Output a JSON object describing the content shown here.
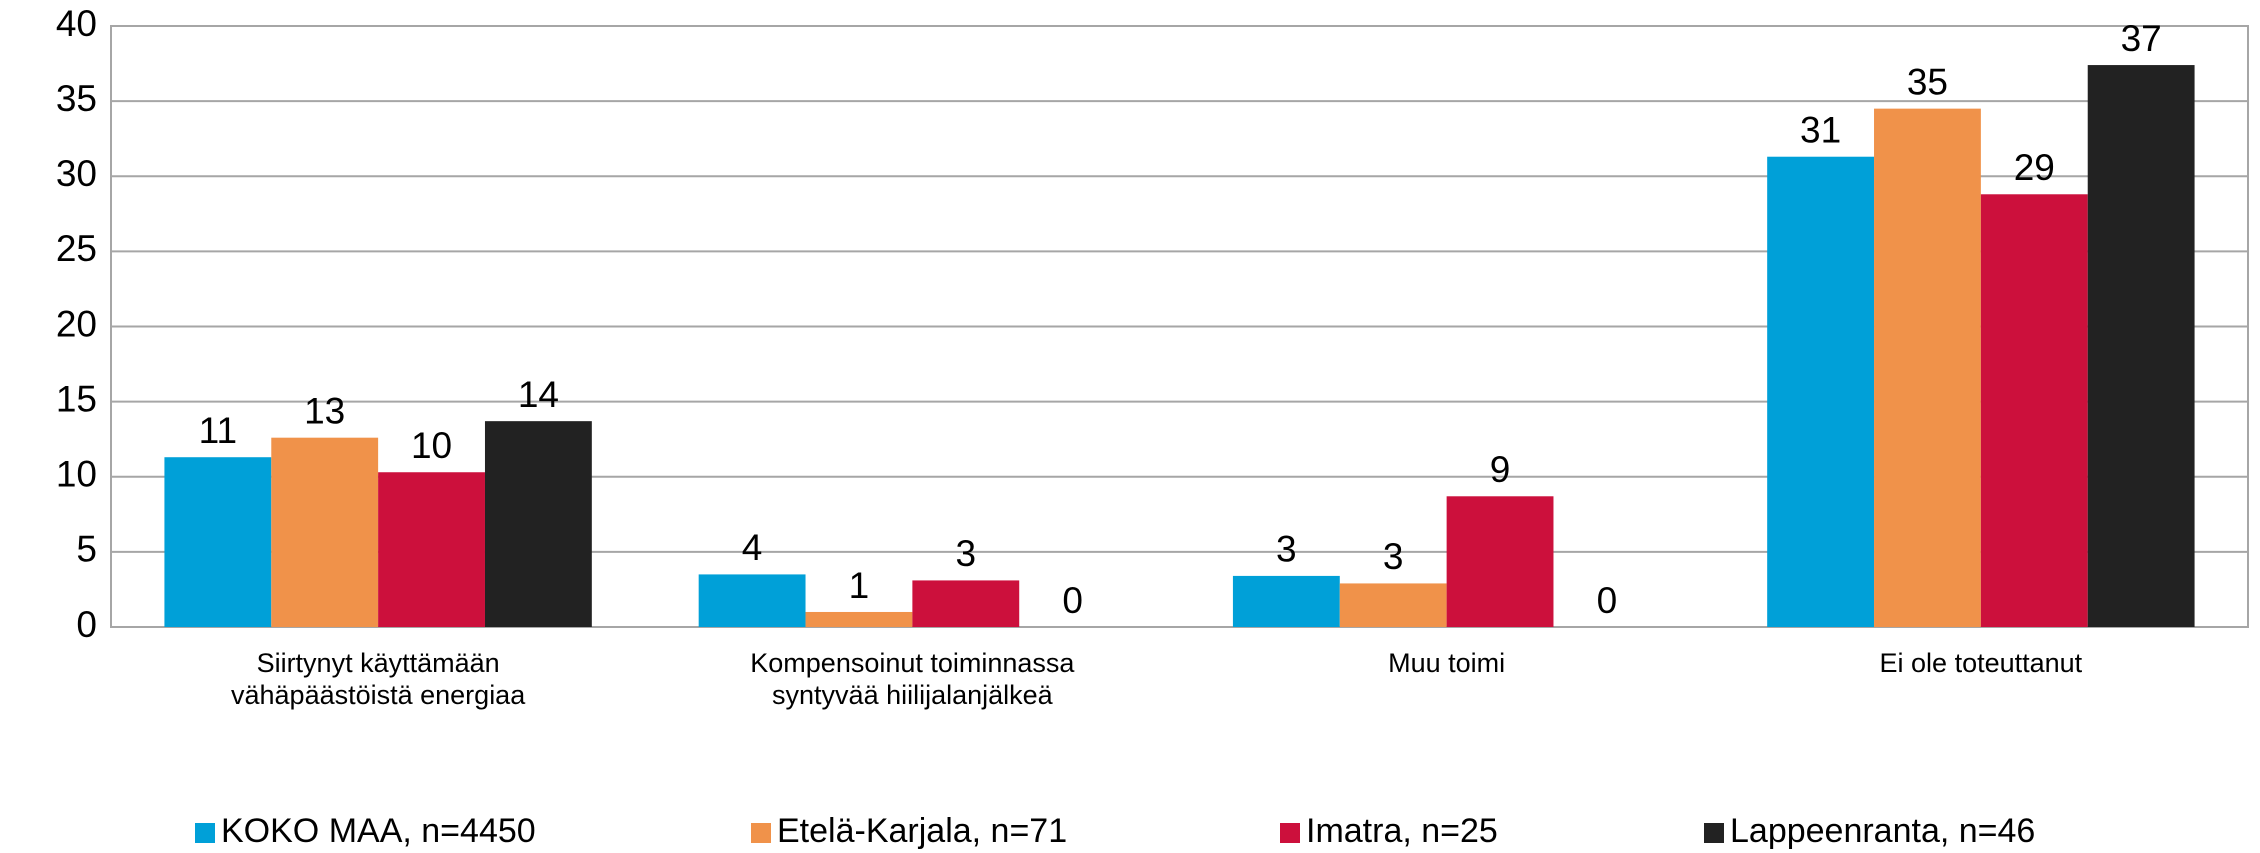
{
  "chart_data": {
    "type": "bar",
    "categories": [
      "Siirtynyt käyttämään vähäpäästöistä energiaa",
      "Kompensoinut toiminnassa syntyvää hiilijalanjälkeä",
      "Muu toimi",
      "Ei ole toteuttanut"
    ],
    "series": [
      {
        "name": "KOKO MAA, n=4450",
        "color": "#00a0d8",
        "values": [
          11.3,
          3.5,
          3.4,
          31.3
        ],
        "value_labels": [
          "11",
          "4",
          "3",
          "31"
        ]
      },
      {
        "name": "Etelä-Karjala, n=71",
        "color": "#f0924a",
        "values": [
          12.6,
          1.0,
          2.9,
          34.5
        ],
        "value_labels": [
          "13",
          "1",
          "3",
          "35"
        ]
      },
      {
        "name": "Imatra, n=25",
        "color": "#cc103c",
        "values": [
          10.3,
          3.1,
          8.7,
          28.8
        ],
        "value_labels": [
          "10",
          "3",
          "9",
          "29"
        ]
      },
      {
        "name": "Lappeenranta, n=46",
        "color": "#222222",
        "values": [
          13.7,
          0,
          0,
          37.4
        ],
        "value_labels": [
          "14",
          "0",
          "0",
          "37"
        ]
      }
    ],
    "ylim": [
      0,
      40
    ],
    "yticks": [
      0,
      5,
      10,
      15,
      20,
      25,
      30,
      35,
      40
    ],
    "grid": true,
    "legend": "bottom"
  }
}
